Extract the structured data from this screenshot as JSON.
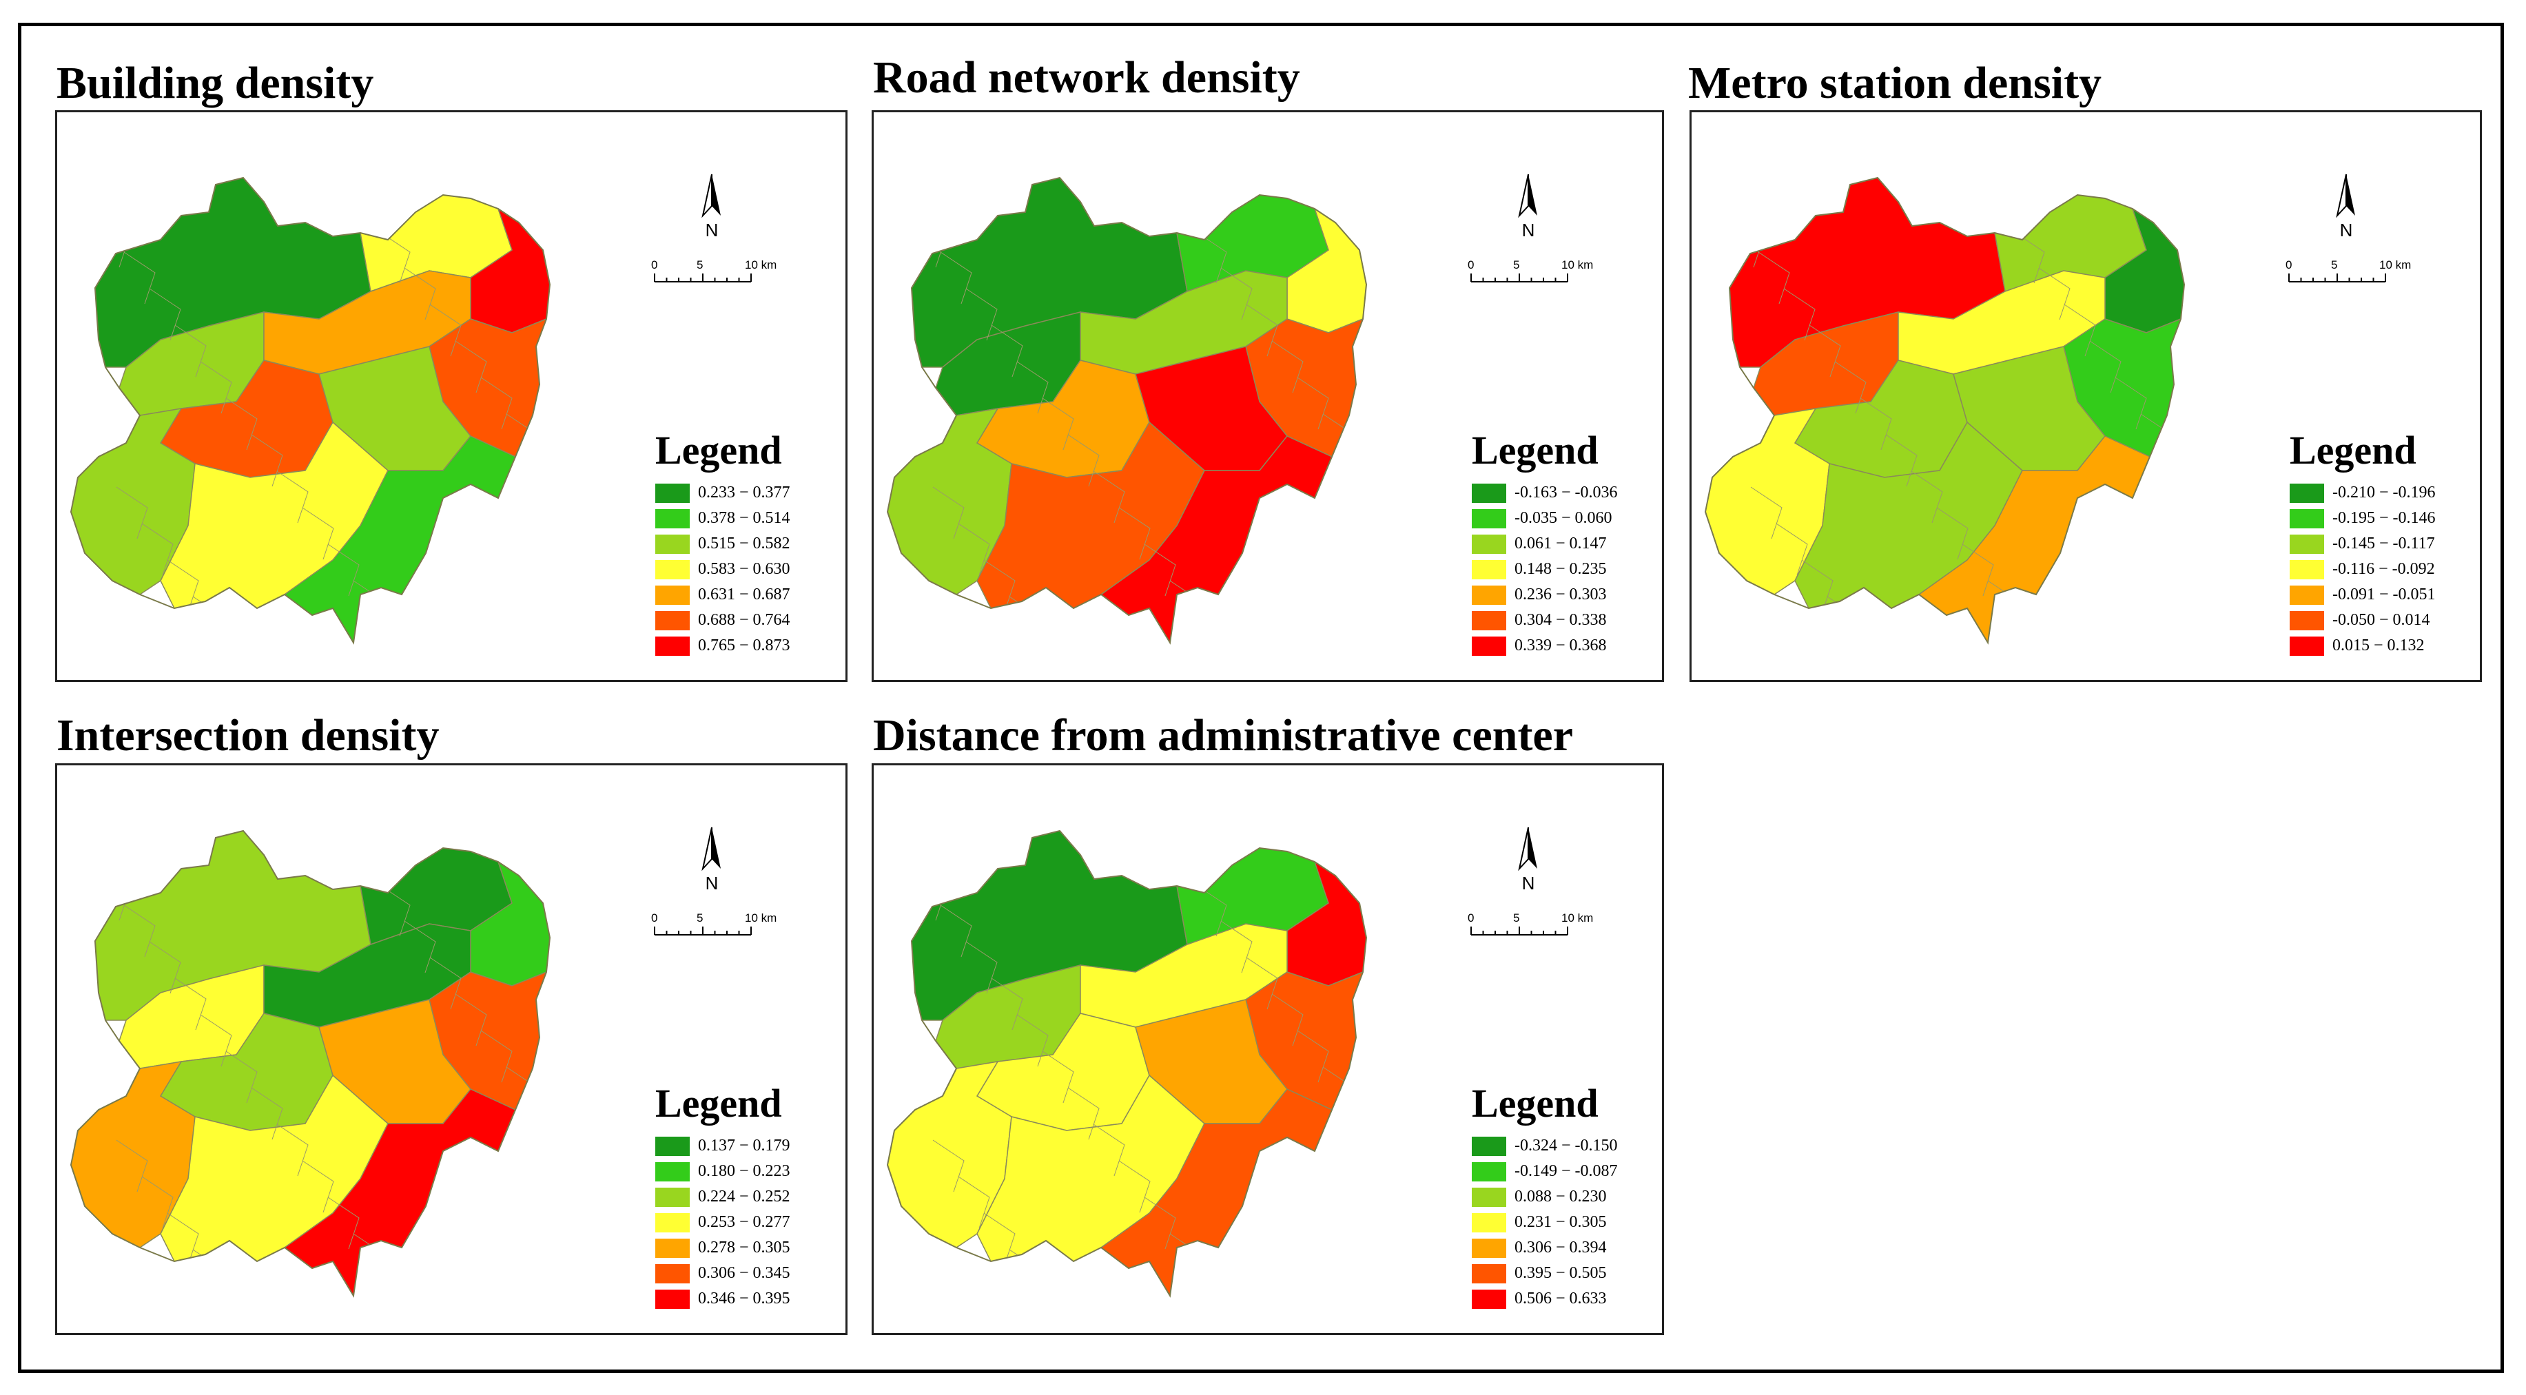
{
  "colors": {
    "c1": "#1a9a1a",
    "c2": "#33cc1a",
    "c3": "#99d61f",
    "c4": "#ffff33",
    "c5": "#ffa500",
    "c6": "#ff5500",
    "c7": "#ff0000"
  },
  "panels": [
    {
      "title": "Building density",
      "legend_title": "Legend",
      "north_label": "N",
      "scale": {
        "labels": [
          "0",
          "5",
          "10 km"
        ]
      },
      "legend": [
        "0.233 − 0.377",
        "0.378 − 0.514",
        "0.515 − 0.582",
        "0.583 − 0.630",
        "0.631 − 0.687",
        "0.688 − 0.764",
        "0.765 − 0.873"
      ]
    },
    {
      "title": "Road network density",
      "legend_title": "Legend",
      "north_label": "N",
      "scale": {
        "labels": [
          "0",
          "5",
          "10 km"
        ]
      },
      "legend": [
        "-0.163 − -0.036",
        "-0.035 − 0.060",
        "0.061 − 0.147",
        "0.148 − 0.235",
        "0.236 − 0.303",
        "0.304 − 0.338",
        "0.339 − 0.368"
      ]
    },
    {
      "title": "Metro station density",
      "legend_title": "Legend",
      "north_label": "N",
      "scale": {
        "labels": [
          "0",
          "5",
          "10 km"
        ]
      },
      "legend": [
        "-0.210 − -0.196",
        "-0.195 − -0.146",
        "-0.145 − -0.117",
        "-0.116 − -0.092",
        "-0.091 − -0.051",
        "-0.050 − 0.014",
        "0.015 − 0.132"
      ]
    },
    {
      "title": "Intersection density",
      "legend_title": "Legend",
      "north_label": "N",
      "scale": {
        "labels": [
          "0",
          "5",
          "10 km"
        ]
      },
      "legend": [
        "0.137 − 0.179",
        "0.180 − 0.223",
        "0.224 − 0.252",
        "0.253 − 0.277",
        "0.278 − 0.305",
        "0.306 − 0.345",
        "0.346 − 0.395"
      ]
    },
    {
      "title": "Distance from administrative center",
      "legend_title": "Legend",
      "north_label": "N",
      "scale": {
        "labels": [
          "0",
          "5",
          "10 km"
        ]
      },
      "legend": [
        "-0.324 − -0.150",
        "-0.149 − -0.087",
        "0.088 − 0.230",
        "0.231 − 0.305",
        "0.306 − 0.394",
        "0.395 − 0.505",
        "0.506 − 0.633"
      ]
    }
  ]
}
